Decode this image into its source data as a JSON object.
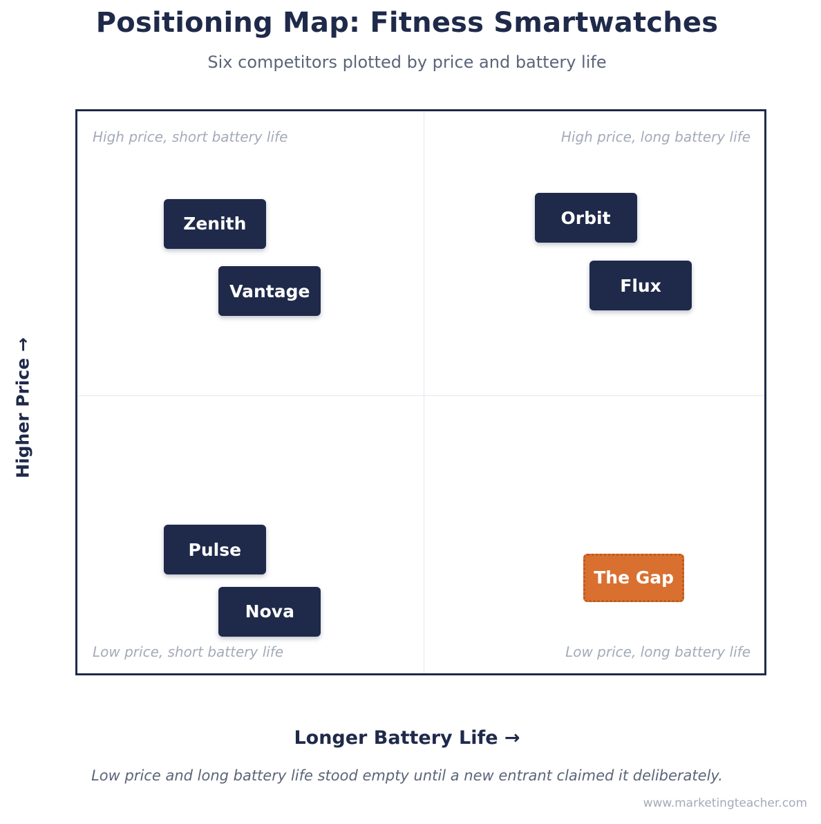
{
  "header": {
    "title": "Positioning Map: Fitness Smartwatches",
    "subtitle": "Six competitors plotted by price and battery life"
  },
  "chart_data": {
    "type": "scatter",
    "title": "Positioning Map: Fitness Smartwatches",
    "subtitle": "Six competitors plotted by price and battery life",
    "xlabel": "Longer Battery Life →",
    "ylabel": "Higher Price →",
    "quadrants": {
      "top_left": "High price, short battery life",
      "top_right": "High price, long battery life",
      "bottom_left": "Low price, short battery life",
      "bottom_right": "Low price, long battery life"
    },
    "points": [
      {
        "label": "Zenith",
        "battery": 20,
        "price": 80,
        "highlight": false
      },
      {
        "label": "Vantage",
        "battery": 28,
        "price": 68,
        "highlight": false
      },
      {
        "label": "Orbit",
        "battery": 74,
        "price": 81,
        "highlight": false
      },
      {
        "label": "Flux",
        "battery": 82,
        "price": 69,
        "highlight": false
      },
      {
        "label": "Pulse",
        "battery": 20,
        "price": 22,
        "highlight": false
      },
      {
        "label": "Nova",
        "battery": 28,
        "price": 11,
        "highlight": false
      },
      {
        "label": "The Gap",
        "battery": 81,
        "price": 17,
        "highlight": true
      }
    ],
    "x_range": [
      0,
      100
    ],
    "y_range": [
      0,
      100
    ],
    "grid": false,
    "colors": {
      "brand": "#1f2a4a",
      "gap": "#d97030",
      "gap_border": "#b85a20"
    }
  },
  "footer": {
    "caption": "Low price and long battery life stood empty until a new entrant claimed it deliberately.",
    "source": "www.marketingteacher.com"
  }
}
